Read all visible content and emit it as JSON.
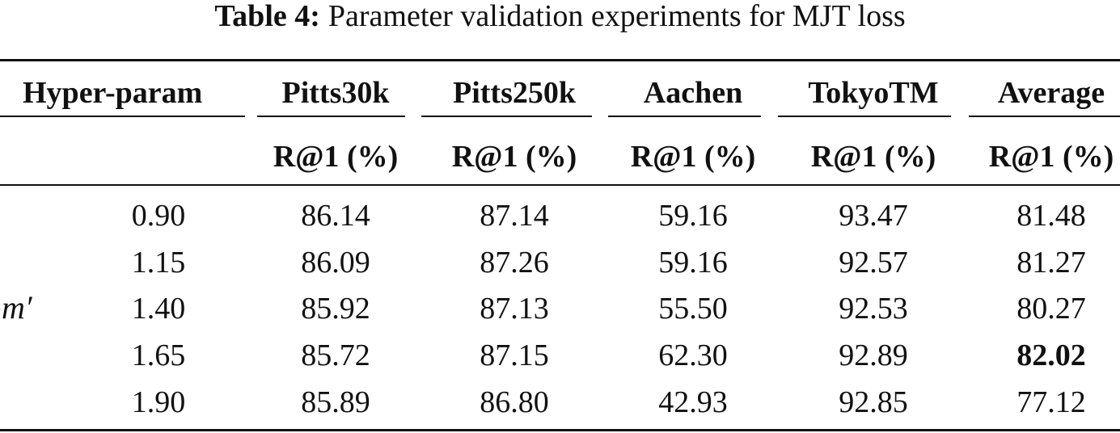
{
  "caption": {
    "label": "Table 4:",
    "text": "Parameter validation experiments for MJT loss"
  },
  "table": {
    "header": {
      "first_col": "Hyper-param",
      "datasets": [
        "Pitts30k",
        "Pitts250k",
        "Aachen",
        "TokyoTM",
        "Average"
      ],
      "metric": "R@1 (%)"
    },
    "param_symbol": "m′",
    "rows": [
      {
        "param": "0.90",
        "values": [
          "86.14",
          "87.14",
          "59.16",
          "93.47",
          "81.48"
        ],
        "bold_index": -1
      },
      {
        "param": "1.15",
        "values": [
          "86.09",
          "87.26",
          "59.16",
          "92.57",
          "81.27"
        ],
        "bold_index": -1
      },
      {
        "param": "1.40",
        "values": [
          "85.92",
          "87.13",
          "55.50",
          "92.53",
          "80.27"
        ],
        "bold_index": -1
      },
      {
        "param": "1.65",
        "values": [
          "85.72",
          "87.15",
          "62.30",
          "92.89",
          "82.02"
        ],
        "bold_index": 4
      },
      {
        "param": "1.90",
        "values": [
          "85.89",
          "86.80",
          "42.93",
          "92.85",
          "77.12"
        ],
        "bold_index": -1
      }
    ]
  }
}
